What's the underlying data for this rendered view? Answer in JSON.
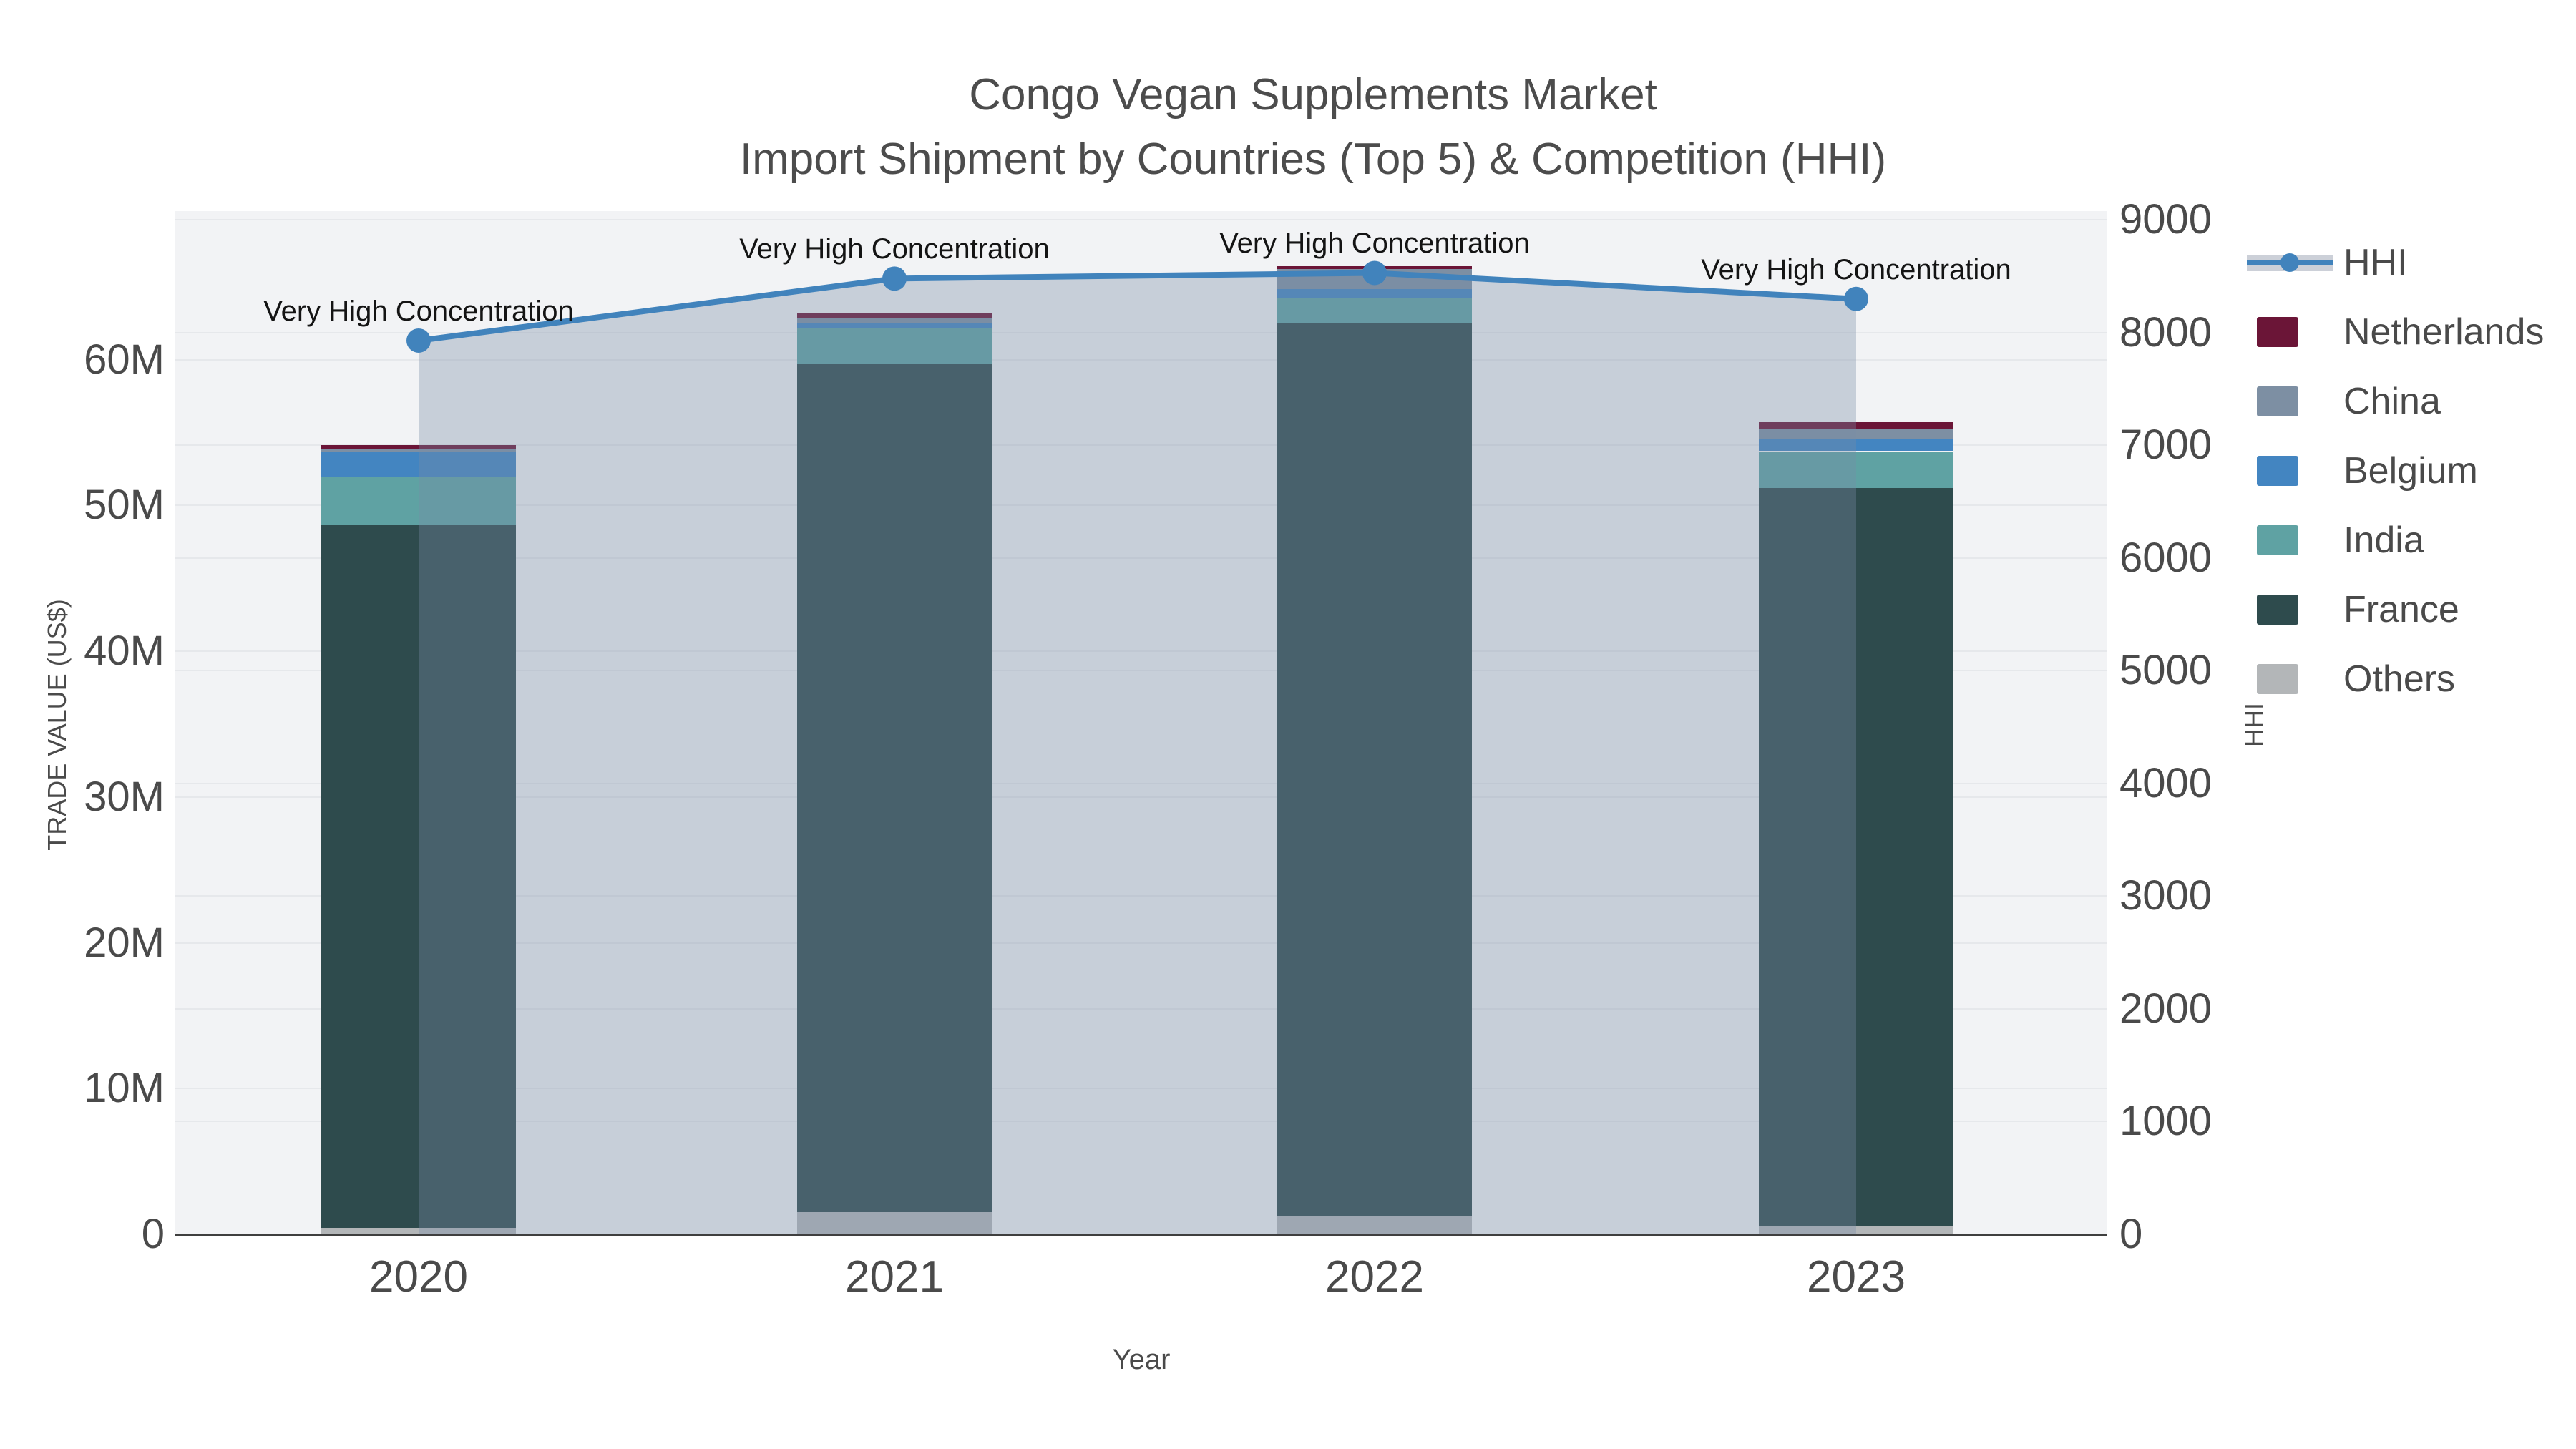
{
  "title": {
    "line1": "Congo Vegan Supplements Market",
    "line2": "Import Shipment by Countries (Top 5) & Competition (HHI)"
  },
  "axes": {
    "x": {
      "title": "Year",
      "tick_labels": [
        "2020",
        "2021",
        "2022",
        "2023"
      ]
    },
    "y_left": {
      "title": "TRADE VALUE (US$)",
      "tick_labels": [
        "0",
        "10M",
        "20M",
        "30M",
        "40M",
        "50M",
        "60M"
      ],
      "tick_values_millions": [
        0,
        10,
        20,
        30,
        40,
        50,
        60
      ]
    },
    "y_right": {
      "title": "HHI",
      "tick_labels": [
        "0",
        "1000",
        "2000",
        "3000",
        "4000",
        "5000",
        "6000",
        "7000",
        "8000",
        "9000"
      ],
      "tick_values": [
        0,
        1000,
        2000,
        3000,
        4000,
        5000,
        6000,
        7000,
        8000,
        9000
      ]
    }
  },
  "legend": {
    "items": [
      {
        "label": "HHI",
        "type": "line",
        "color": "#4183bc"
      },
      {
        "label": "Netherlands",
        "type": "box",
        "color": "#6b1537"
      },
      {
        "label": "China",
        "type": "box",
        "color": "#7d8fa3"
      },
      {
        "label": "Belgium",
        "type": "box",
        "color": "#4385c1"
      },
      {
        "label": "India",
        "type": "box",
        "color": "#5fa2a3"
      },
      {
        "label": "France",
        "type": "box",
        "color": "#2e4b4d"
      },
      {
        "label": "Others",
        "type": "box",
        "color": "#b3b6b8"
      }
    ]
  },
  "chart_data": {
    "type": "bar",
    "subtype": "stacked-bars-with-line",
    "title": "Congo Vegan Supplements Market Import Shipment by Countries (Top 5) & Competition (HHI)",
    "xlabel": "Year",
    "ylabel_left": "TRADE VALUE (US$)",
    "ylabel_right": "HHI",
    "categories": [
      "2020",
      "2021",
      "2022",
      "2023"
    ],
    "ylim_left_millions": [
      0,
      70.2
    ],
    "ylim_right": [
      0,
      9079
    ],
    "grid": true,
    "legend_position": "right",
    "series_stack_bottom_to_top": [
      {
        "name": "Others",
        "color": "#b3b6b8",
        "values_millions_usd": [
          0.44,
          1.52,
          1.28,
          0.54
        ]
      },
      {
        "name": "France",
        "color": "#2e4b4d",
        "values_millions_usd": [
          48.24,
          58.24,
          61.28,
          50.64
        ]
      },
      {
        "name": "India",
        "color": "#5fa2a3",
        "values_millions_usd": [
          3.24,
          2.45,
          1.67,
          2.55
        ]
      },
      {
        "name": "Belgium",
        "color": "#4385c1",
        "values_millions_usd": [
          1.77,
          0.34,
          0.64,
          0.88
        ]
      },
      {
        "name": "China",
        "color": "#7d8fa3",
        "values_millions_usd": [
          0.15,
          0.34,
          1.37,
          0.64
        ]
      },
      {
        "name": "Netherlands",
        "color": "#6b1537",
        "values_millions_usd": [
          0.29,
          0.29,
          0.2,
          0.49
        ]
      }
    ],
    "bar_totals_millions_usd": [
      54.13,
      63.18,
      66.44,
      55.74
    ],
    "hhi": {
      "name": "HHI",
      "values": [
        7930,
        8480,
        8530,
        8300
      ],
      "line_color": "#4183bc",
      "area_fill": "rgba(120,140,165,0.35)",
      "annotation_label": "Very High Concentration"
    }
  },
  "colors": {
    "plot_background": "#f2f3f5",
    "paper_background": "#ffffff",
    "gridline": "#e6e8eb",
    "axis_line": "#3f3f3f",
    "text": "#4a4a4a",
    "annotation_text": "#141414"
  }
}
